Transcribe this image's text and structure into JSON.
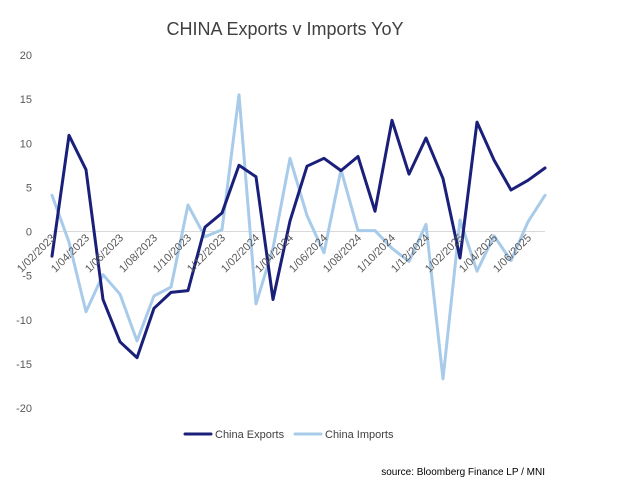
{
  "chart_data": {
    "type": "line",
    "title": "CHINA Exports v Imports YoY",
    "xlabel": "",
    "ylabel": "",
    "ylim": [
      -20,
      20
    ],
    "yticks": [
      20,
      15,
      10,
      5,
      0,
      -5,
      -10,
      -15,
      -20
    ],
    "x": [
      "1/02/2023",
      "1/03/2023",
      "1/04/2023",
      "1/05/2023",
      "1/06/2023",
      "1/07/2023",
      "1/08/2023",
      "1/09/2023",
      "1/10/2023",
      "1/11/2023",
      "1/12/2023",
      "1/01/2024",
      "1/02/2024",
      "1/03/2024",
      "1/04/2024",
      "1/05/2024",
      "1/06/2024",
      "1/07/2024",
      "1/08/2024",
      "1/09/2024",
      "1/10/2024",
      "1/11/2024",
      "1/12/2024",
      "1/01/2025",
      "1/02/2025",
      "1/03/2025",
      "1/04/2025",
      "1/05/2025",
      "1/06/2025",
      "1/07/2025"
    ],
    "xtick_labels": [
      {
        "index": 0,
        "label": "1/02/2023"
      },
      {
        "index": 2,
        "label": "1/04/2023"
      },
      {
        "index": 4,
        "label": "1/06/2023"
      },
      {
        "index": 6,
        "label": "1/08/2023"
      },
      {
        "index": 8,
        "label": "1/10/2023"
      },
      {
        "index": 10,
        "label": "1/12/2023"
      },
      {
        "index": 12,
        "label": "1/02/2024"
      },
      {
        "index": 14,
        "label": "1/04/2024"
      },
      {
        "index": 16,
        "label": "1/06/2024"
      },
      {
        "index": 18,
        "label": "1/08/2024"
      },
      {
        "index": 20,
        "label": "1/10/2024"
      },
      {
        "index": 22,
        "label": "1/12/2024"
      },
      {
        "index": 24,
        "label": "1/02/2025"
      },
      {
        "index": 26,
        "label": "1/04/2025"
      },
      {
        "index": 28,
        "label": "1/06/2025"
      }
    ],
    "series": [
      {
        "name": "China Exports",
        "color": "#1a1f7a",
        "values": [
          -2.8,
          10.9,
          7.0,
          -7.7,
          -12.5,
          -14.3,
          -8.7,
          -6.9,
          -6.7,
          0.5,
          2.1,
          7.5,
          6.2,
          -7.7,
          1.2,
          7.4,
          8.3,
          6.9,
          8.5,
          2.3,
          12.6,
          6.5,
          10.6,
          6.0,
          -3.0,
          12.4,
          8.1,
          4.7,
          5.8,
          7.2
        ]
      },
      {
        "name": "China Imports",
        "color": "#a8cbea",
        "values": [
          4.1,
          -1.2,
          -9.1,
          -4.9,
          -7.1,
          -12.4,
          -7.3,
          -6.3,
          3.0,
          -0.6,
          0.2,
          15.5,
          -8.2,
          -1.9,
          8.3,
          1.8,
          -2.4,
          7.0,
          0.1,
          0.1,
          -1.9,
          -3.4,
          0.8,
          -16.7,
          1.3,
          -4.5,
          -0.5,
          -3.3,
          1.1,
          4.1
        ]
      }
    ],
    "grid": false,
    "legend": "bottom-center",
    "source": "source: Bloomberg Finance LP / MNI"
  }
}
